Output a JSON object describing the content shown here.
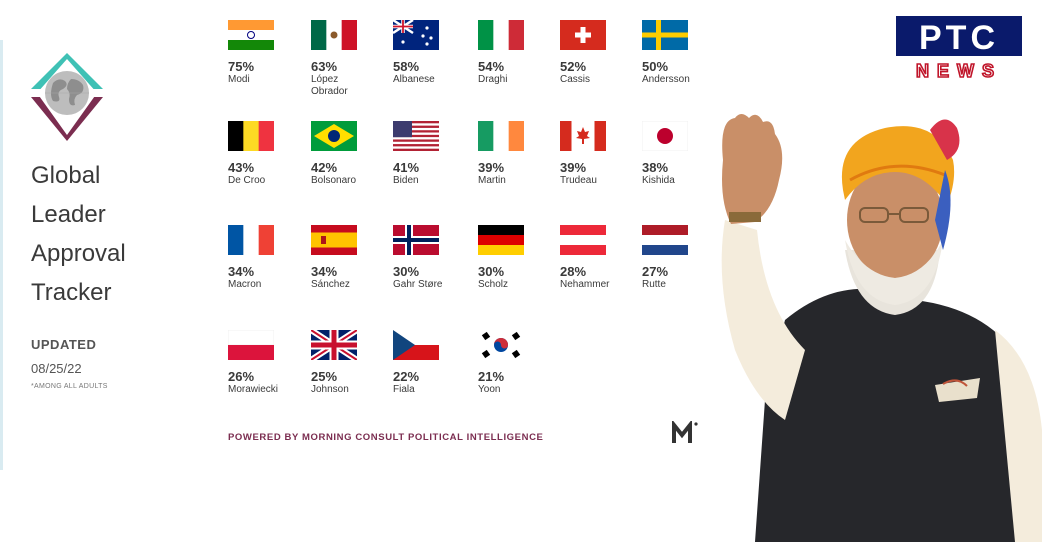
{
  "header": {
    "title_lines": [
      "Global",
      "Leader",
      "Approval",
      "Tracker"
    ],
    "updated_label": "UPDATED",
    "updated_date": "08/25/22",
    "footnote": "*AMONG ALL ADULTS"
  },
  "footer": {
    "powered_by": "POWERED BY MORNING CONSULT POLITICAL INTELLIGENCE",
    "brand_mark": "M"
  },
  "overlay": {
    "channel_logo_top": "PTC",
    "channel_logo_bottom": "NEWS"
  },
  "colors": {
    "accent": "#7b2d50",
    "teal": "#3fc1b5",
    "text": "#3a3a3a"
  },
  "chart_data": {
    "type": "table",
    "title": "Global Leader Approval Tracker",
    "unit": "%",
    "leaders": [
      {
        "name": "Modi",
        "country": "India",
        "value": 75
      },
      {
        "name": "López Obrador",
        "country": "Mexico",
        "value": 63
      },
      {
        "name": "Albanese",
        "country": "Australia",
        "value": 58
      },
      {
        "name": "Draghi",
        "country": "Italy",
        "value": 54
      },
      {
        "name": "Cassis",
        "country": "Switzerland",
        "value": 52
      },
      {
        "name": "Andersson",
        "country": "Sweden",
        "value": 50
      },
      {
        "name": "De Croo",
        "country": "Belgium",
        "value": 43
      },
      {
        "name": "Bolsonaro",
        "country": "Brazil",
        "value": 42
      },
      {
        "name": "Biden",
        "country": "United States",
        "value": 41
      },
      {
        "name": "Martin",
        "country": "Ireland",
        "value": 39
      },
      {
        "name": "Trudeau",
        "country": "Canada",
        "value": 39
      },
      {
        "name": "Kishida",
        "country": "Japan",
        "value": 38
      },
      {
        "name": "Macron",
        "country": "France",
        "value": 34
      },
      {
        "name": "Sánchez",
        "country": "Spain",
        "value": 34
      },
      {
        "name": "Gahr Støre",
        "country": "Norway",
        "value": 30
      },
      {
        "name": "Scholz",
        "country": "Germany",
        "value": 30
      },
      {
        "name": "Nehammer",
        "country": "Austria",
        "value": 28
      },
      {
        "name": "Rutte",
        "country": "Netherlands",
        "value": 27
      },
      {
        "name": "Morawiecki",
        "country": "Poland",
        "value": 26
      },
      {
        "name": "Johnson",
        "country": "United Kingdom",
        "value": 25
      },
      {
        "name": "Fiala",
        "country": "Czech Republic",
        "value": 22
      },
      {
        "name": "Yoon",
        "country": "South Korea",
        "value": 21
      }
    ]
  }
}
